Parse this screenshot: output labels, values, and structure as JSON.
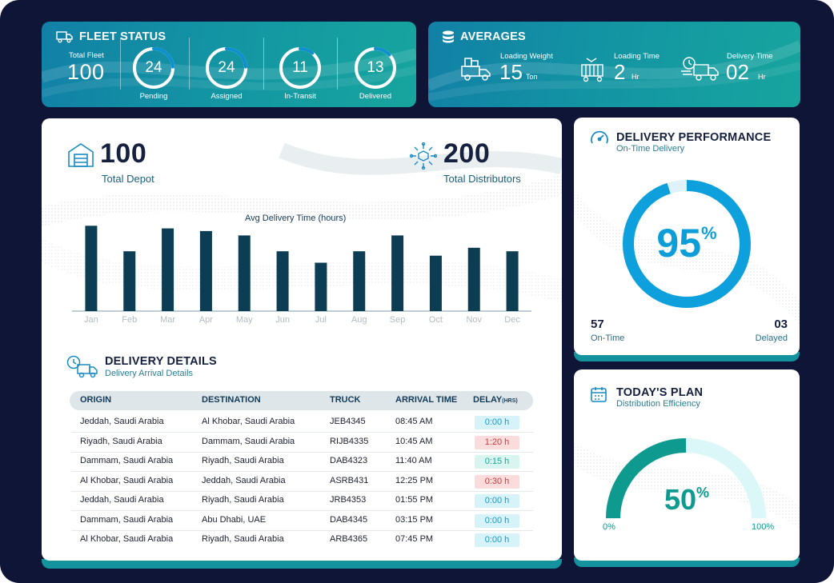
{
  "fleet_status": {
    "title": "FLEET STATUS",
    "total_label": "Total Fleet",
    "total_value": "100",
    "rings": [
      {
        "value": "24",
        "label": "Pending",
        "progress": 0.24
      },
      {
        "value": "24",
        "label": "Assigned",
        "progress": 0.24
      },
      {
        "value": "11",
        "label": "In-Transit",
        "progress": 0.11
      },
      {
        "value": "13",
        "label": "Delivered",
        "progress": 0.13
      }
    ]
  },
  "averages": {
    "title": "AVERAGES",
    "items": [
      {
        "label": "Loading Weight",
        "value": "15",
        "unit": "Ton",
        "icon": "truck-boxes-icon"
      },
      {
        "label": "Loading Time",
        "value": "2",
        "unit": "Hr",
        "icon": "container-truck-icon"
      },
      {
        "label": "Delivery Time",
        "value": "02",
        "unit": "Hr",
        "icon": "fast-delivery-icon"
      }
    ]
  },
  "depot": {
    "value": "100",
    "label": "Total Depot",
    "icon": "warehouse-icon"
  },
  "distributors": {
    "value": "200",
    "label": "Total Distributors",
    "icon": "network-box-icon"
  },
  "chart_data": {
    "type": "bar",
    "title": "Avg Delivery Time (hours)",
    "categories": [
      "Jan",
      "Feb",
      "Mar",
      "Apr",
      "May",
      "Jun",
      "Jul",
      "Aug",
      "Sep",
      "Oct",
      "Nov",
      "Dec"
    ],
    "values": [
      9.7,
      6.8,
      9.4,
      9.1,
      8.6,
      6.8,
      5.5,
      6.8,
      8.6,
      6.3,
      7.2,
      6.8
    ],
    "ylim": [
      0,
      10
    ],
    "xlabel": "",
    "ylabel": "",
    "grid": false
  },
  "delivery_details": {
    "title": "DELIVERY DETAILS",
    "subtitle": "Delivery Arrival Details",
    "columns": [
      "ORIGIN",
      "DESTINATION",
      "TRUCK",
      "ARRIVAL TIME",
      "DELAY",
      "(HRS)"
    ],
    "rows": [
      {
        "origin": "Jeddah, Saudi Arabia",
        "destination": "Al Khobar, Saudi Arabia",
        "truck": "JEB4345",
        "arrival": "08:45 AM",
        "delay": "0:00 h",
        "status": "ok"
      },
      {
        "origin": "Riyadh, Saudi Arabia",
        "destination": "Dammam, Saudi Arabia",
        "truck": "RIJB4335",
        "arrival": "10:45 AM",
        "delay": "1:20 h",
        "status": "bad"
      },
      {
        "origin": "Dammam, Saudi Arabia",
        "destination": "Riyadh, Saudi Arabia",
        "truck": "DAB4323",
        "arrival": "11:40 AM",
        "delay": "0:15 h",
        "status": "mid"
      },
      {
        "origin": "Al Khobar, Saudi Arabia",
        "destination": "Jeddah, Saudi Arabia",
        "truck": "ASRB431",
        "arrival": "12:25 PM",
        "delay": "0:30 h",
        "status": "bad"
      },
      {
        "origin": "Jeddah, Saudi Arabia",
        "destination": "Riyadh, Saudi Arabia",
        "truck": "JRB4353",
        "arrival": "01:55 PM",
        "delay": "0:00 h",
        "status": "ok"
      },
      {
        "origin": "Dammam, Saudi Arabia",
        "destination": "Abu Dhabi, UAE",
        "truck": "DAB4345",
        "arrival": "03:15 PM",
        "delay": "0:00 h",
        "status": "ok"
      },
      {
        "origin": "Al Khobar, Saudi Arabia",
        "destination": "Riyadh, Saudi Arabia",
        "truck": "ARB4365",
        "arrival": "07:45 PM",
        "delay": "0:00 h",
        "status": "ok"
      }
    ]
  },
  "delivery_performance": {
    "title": "DELIVERY PERFORMANCE",
    "subtitle": "On-Time Delivery",
    "percent_value": "95",
    "percent_sign": "%",
    "progress": 0.95,
    "on_time_value": "57",
    "on_time_label": "On-Time",
    "delayed_value": "03",
    "delayed_label": "Delayed"
  },
  "todays_plan": {
    "title": "TODAY'S PLAN",
    "subtitle": "Distribution Efficiency",
    "percent_value": "50",
    "percent_sign": "%",
    "progress": 0.5,
    "min_label": "0%",
    "max_label": "100%"
  },
  "colors": {
    "navy": "#0f1537",
    "teal": "#14939f",
    "bar": "#0c3d52",
    "ring_blue": "#0da0dd",
    "gauge_teal": "#0f9a8f"
  }
}
